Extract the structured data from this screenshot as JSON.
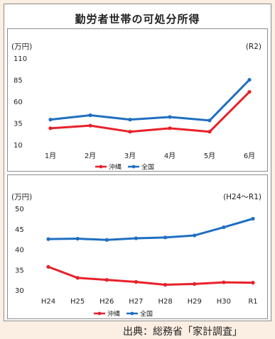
{
  "title": "勤労者世帯の可処分所得",
  "source": "出典：総務省「家計調査」",
  "colors": {
    "okinawa": "#e8202a",
    "national": "#1f6fc0"
  },
  "chart_data": [
    {
      "type": "line",
      "unit_label": "(万円)",
      "period_label": "(R2)",
      "categories": [
        "1月",
        "2月",
        "3月",
        "4月",
        "5月",
        "6月"
      ],
      "yticks": [
        10,
        35,
        60,
        85,
        110
      ],
      "ylim": [
        10,
        110
      ],
      "legend": "bottom-center",
      "series": [
        {
          "name": "沖縄",
          "values": [
            29,
            32,
            25,
            29,
            25,
            71
          ]
        },
        {
          "name": "全国",
          "values": [
            39,
            44,
            39,
            42,
            38,
            85
          ]
        }
      ]
    },
    {
      "type": "line",
      "unit_label": "(万円)",
      "period_label": "(H24～R1)",
      "categories": [
        "H24",
        "H25",
        "H26",
        "H27",
        "H28",
        "H29",
        "H30",
        "R1"
      ],
      "yticks": [
        30,
        35,
        40,
        45,
        50
      ],
      "ylim": [
        30,
        50
      ],
      "legend": "bottom-center",
      "series": [
        {
          "name": "沖縄",
          "values": [
            35.7,
            33.0,
            32.5,
            32.0,
            31.3,
            31.5,
            31.9,
            31.8
          ]
        },
        {
          "name": "全国",
          "values": [
            42.5,
            42.6,
            42.3,
            42.7,
            42.9,
            43.4,
            45.4,
            47.5
          ]
        }
      ]
    }
  ]
}
